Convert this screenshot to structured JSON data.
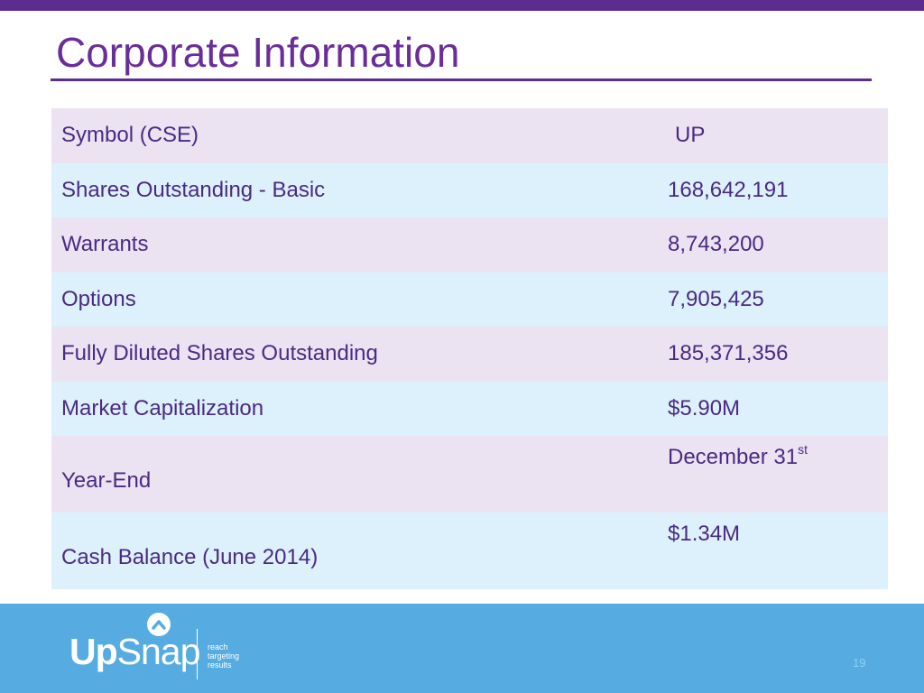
{
  "slide": {
    "title": "Corporate Information",
    "page_number": "19"
  },
  "table": {
    "rows": [
      {
        "label": "Symbol (CSE)",
        "value": "UP"
      },
      {
        "label": "Shares Outstanding - Basic",
        "value": "168,642,191"
      },
      {
        "label": "Warrants",
        "value": "8,743,200"
      },
      {
        "label": "Options",
        "value": "7,905,425"
      },
      {
        "label": "Fully Diluted Shares Outstanding",
        "value": "185,371,356"
      },
      {
        "label": "Market Capitalization",
        "value": "$5.90M"
      },
      {
        "label": "Year-End",
        "value": "December 31",
        "value_sup": "st"
      },
      {
        "label": "Cash Balance (June 2014)",
        "value": "$1.34M"
      }
    ]
  },
  "footer": {
    "logo": {
      "part1": "Up",
      "part2": "Snap"
    },
    "tagline": [
      "reach",
      "targeting",
      "results"
    ]
  },
  "colors": {
    "brand_purple": "#5b2d91",
    "title_purple": "#6a2e99",
    "row_lavender": "#ebe3f2",
    "row_blue": "#dcf1fb",
    "footer_blue": "#56ace0"
  }
}
